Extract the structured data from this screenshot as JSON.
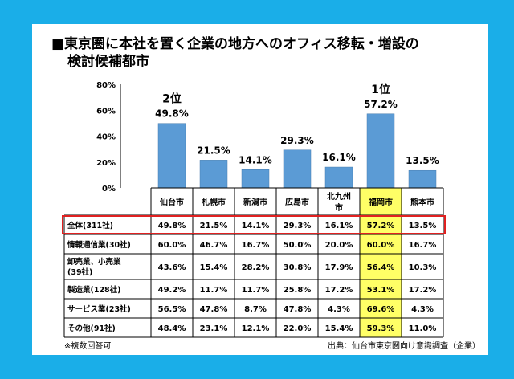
{
  "title_line1": "■東京圏に本社を置く企業の地方へのオフィス移転・増設の",
  "title_line2": "検討候補都市",
  "note": "※複数回答可",
  "source": "出典：仙台市東京圏向け意識調査（企業）",
  "colors": {
    "bar": "#5b9bd5",
    "highlight": "#ffff66",
    "outline": "#e02020",
    "background": "#1aaee8"
  },
  "chart_data": {
    "type": "bar",
    "categories": [
      "仙台市",
      "札幌市",
      "新潟市",
      "広島市",
      "北九州市",
      "福岡市",
      "熊本市"
    ],
    "values": [
      49.8,
      21.5,
      14.1,
      29.3,
      16.1,
      57.2,
      13.5
    ],
    "value_labels": [
      "49.8%",
      "21.5%",
      "14.1%",
      "29.3%",
      "16.1%",
      "57.2%",
      "13.5%"
    ],
    "rank_labels": {
      "0": "2位",
      "5": "1位"
    },
    "yticks": [
      "0%",
      "20%",
      "40%",
      "60%",
      "80%"
    ],
    "ylim": [
      0,
      80
    ],
    "highlight_index": 5,
    "table": {
      "rows": [
        {
          "label": "全体(311社)",
          "values": [
            "49.8%",
            "21.5%",
            "14.1%",
            "29.3%",
            "16.1%",
            "57.2%",
            "13.5%"
          ],
          "outlined": true
        },
        {
          "label": "情報通信業(30社)",
          "values": [
            "60.0%",
            "46.7%",
            "16.7%",
            "50.0%",
            "20.0%",
            "60.0%",
            "16.7%"
          ]
        },
        {
          "label": "卸売業、小売業(39社)",
          "values": [
            "43.6%",
            "15.4%",
            "28.2%",
            "30.8%",
            "17.9%",
            "56.4%",
            "10.3%"
          ]
        },
        {
          "label": "製造業(128社)",
          "values": [
            "49.2%",
            "11.7%",
            "11.7%",
            "25.8%",
            "17.2%",
            "53.1%",
            "17.2%"
          ]
        },
        {
          "label": "サービス業(23社)",
          "values": [
            "56.5%",
            "47.8%",
            "8.7%",
            "47.8%",
            "4.3%",
            "69.6%",
            "4.3%"
          ]
        },
        {
          "label": "その他(91社)",
          "values": [
            "48.4%",
            "23.1%",
            "12.1%",
            "22.0%",
            "15.4%",
            "59.3%",
            "11.0%"
          ]
        }
      ]
    }
  }
}
